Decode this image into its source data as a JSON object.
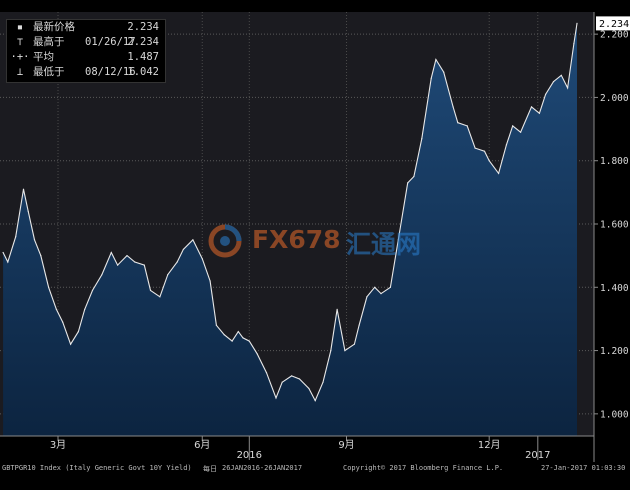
{
  "legend": {
    "rows": [
      {
        "icon": "square-icon",
        "label": "最新价格",
        "date": "",
        "value": "2.234"
      },
      {
        "icon": "high-marker-icon",
        "label": "最高于",
        "date": "01/26/17",
        "value": "2.234"
      },
      {
        "icon": "average-marker-icon",
        "label": "平均",
        "date": "",
        "value": "1.487"
      },
      {
        "icon": "low-marker-icon",
        "label": "最低于",
        "date": "08/12/16",
        "value": "1.042"
      }
    ]
  },
  "footer": {
    "index": "GBTPGR10 Index (Italy Generic Govt 10Y Yield)",
    "period_prefix": "每日",
    "period": "26JAN2016-26JAN2017",
    "copyright": "Copyright© 2017 Bloomberg Finance L.P.",
    "timestamp": "27-Jan-2017 01:03:30"
  },
  "watermark": {
    "text_a": "FX678",
    "text_b": "汇通网"
  },
  "colors": {
    "background": "#000000",
    "plot_bg": "#1b1b20",
    "area_top": "#1f4a78",
    "area_bottom": "#0e2a4a",
    "line": "#e8e8e8",
    "grid": "#5a5a5a",
    "last_badge_bg": "#ffffff",
    "last_badge_text": "#000000"
  },
  "chart_data": {
    "type": "area",
    "title": "",
    "xlabel": "",
    "ylabel": "",
    "x_tick_labels": [
      "3月",
      "6月",
      "2016",
      "9月",
      "12月",
      "2017"
    ],
    "y_ticks": [
      "1.000",
      "1.200",
      "1.400",
      "1.600",
      "1.800",
      "2.000",
      "2.200"
    ],
    "ylim": [
      0.93,
      2.27
    ],
    "last_value_label": "2.234",
    "grid": true,
    "legend_position": "top-left",
    "series": [
      {
        "x": [
          "2016-01-26",
          "2016-01-29",
          "2016-02-03",
          "2016-02-08",
          "2016-02-11",
          "2016-02-15",
          "2016-02-19",
          "2016-02-24",
          "2016-02-29",
          "2016-03-04",
          "2016-03-09",
          "2016-03-14",
          "2016-03-18",
          "2016-03-23",
          "2016-03-29",
          "2016-04-04",
          "2016-04-08",
          "2016-04-14",
          "2016-04-19",
          "2016-04-25",
          "2016-04-29",
          "2016-05-05",
          "2016-05-10",
          "2016-05-16",
          "2016-05-20",
          "2016-05-26",
          "2016-06-01",
          "2016-06-06",
          "2016-06-10",
          "2016-06-15",
          "2016-06-20",
          "2016-06-24",
          "2016-06-27",
          "2016-07-01",
          "2016-07-06",
          "2016-07-12",
          "2016-07-18",
          "2016-07-22",
          "2016-07-28",
          "2016-08-02",
          "2016-08-08",
          "2016-08-12",
          "2016-08-17",
          "2016-08-22",
          "2016-08-26",
          "2016-08-31",
          "2016-09-06",
          "2016-09-09",
          "2016-09-14",
          "2016-09-19",
          "2016-09-23",
          "2016-09-29",
          "2016-10-04",
          "2016-10-10",
          "2016-10-14",
          "2016-10-19",
          "2016-10-25",
          "2016-10-28",
          "2016-11-02",
          "2016-11-08",
          "2016-11-11",
          "2016-11-17",
          "2016-11-22",
          "2016-11-28",
          "2016-12-01",
          "2016-12-07",
          "2016-12-12",
          "2016-12-16",
          "2016-12-21",
          "2016-12-28",
          "2017-01-02",
          "2017-01-06",
          "2017-01-11",
          "2017-01-16",
          "2017-01-20",
          "2017-01-24",
          "2017-01-26"
        ],
        "values": [
          1.51,
          1.48,
          1.56,
          1.71,
          1.64,
          1.55,
          1.5,
          1.4,
          1.33,
          1.29,
          1.22,
          1.26,
          1.33,
          1.39,
          1.44,
          1.51,
          1.47,
          1.5,
          1.48,
          1.47,
          1.39,
          1.37,
          1.44,
          1.48,
          1.52,
          1.55,
          1.49,
          1.42,
          1.28,
          1.25,
          1.23,
          1.26,
          1.24,
          1.23,
          1.19,
          1.13,
          1.05,
          1.1,
          1.12,
          1.11,
          1.08,
          1.042,
          1.1,
          1.2,
          1.33,
          1.2,
          1.22,
          1.28,
          1.37,
          1.4,
          1.38,
          1.4,
          1.55,
          1.73,
          1.75,
          1.87,
          2.06,
          2.12,
          2.08,
          1.97,
          1.92,
          1.91,
          1.84,
          1.83,
          1.8,
          1.76,
          1.85,
          1.91,
          1.89,
          1.97,
          1.95,
          2.01,
          2.05,
          2.07,
          2.03,
          2.17,
          2.234
        ]
      }
    ]
  }
}
